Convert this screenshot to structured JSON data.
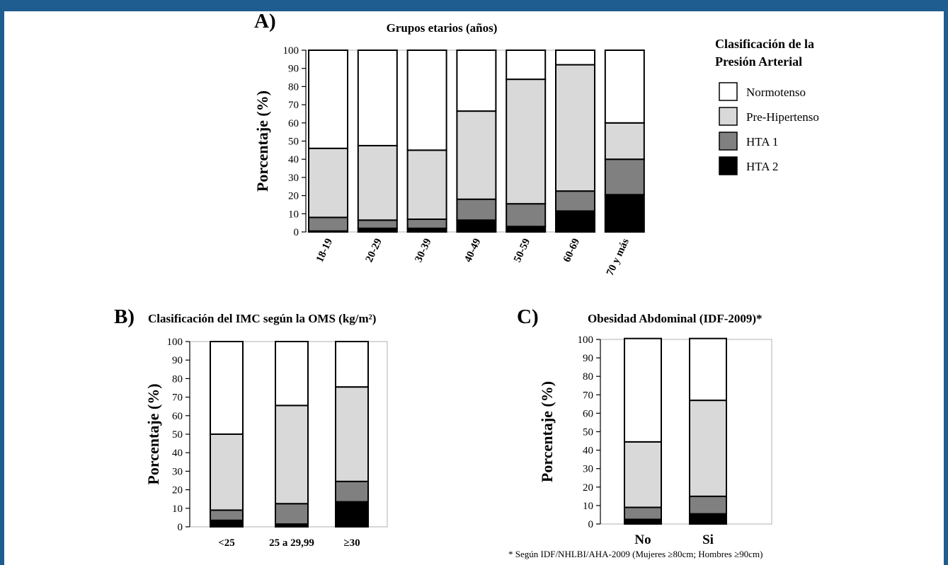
{
  "colors": {
    "normotenso": "#ffffff",
    "pre_hipertenso": "#d9d9d9",
    "hta1": "#808080",
    "hta2": "#000000",
    "page_border": "#1f5c8f"
  },
  "legend": {
    "title_line1": "Clasificación de la",
    "title_line2": "Presión Arterial",
    "items": [
      {
        "label": "Normotenso",
        "color": "#ffffff"
      },
      {
        "label": "Pre-Hipertenso",
        "color": "#d9d9d9"
      },
      {
        "label": "HTA 1",
        "color": "#808080"
      },
      {
        "label": "HTA 2",
        "color": "#000000"
      }
    ]
  },
  "footnote": "* Según IDF/NHLBI/AHA-2009 (Mujeres ≥80cm; Hombres ≥90cm)",
  "chart_data": [
    {
      "type": "bar",
      "stacked": true,
      "panel": "A)",
      "title": "Grupos etarios (años)",
      "ylabel": "Porcentaje (%)",
      "ylim": [
        0,
        100
      ],
      "yticks": [
        0,
        10,
        20,
        30,
        40,
        50,
        60,
        70,
        80,
        90,
        100
      ],
      "categories": [
        "18-19",
        "20-29",
        "30-39",
        "40-49",
        "50-59",
        "60-69",
        "70 y más"
      ],
      "series": [
        {
          "name": "HTA 2",
          "values": [
            0.5,
            2,
            2,
            6.5,
            3,
            11.5,
            20.5
          ]
        },
        {
          "name": "HTA 1",
          "values": [
            7.5,
            4.5,
            5,
            11.5,
            12.5,
            11,
            19.5
          ]
        },
        {
          "name": "Pre-Hipertenso",
          "values": [
            38,
            41,
            38,
            48.5,
            68.5,
            69.5,
            20
          ]
        },
        {
          "name": "Normotenso",
          "values": [
            54,
            52.5,
            55,
            33.5,
            16,
            8,
            40
          ]
        }
      ]
    },
    {
      "type": "bar",
      "stacked": true,
      "panel": "B)",
      "title": "Clasificación del IMC según la OMS (kg/m²)",
      "ylabel": "Porcentaje (%)",
      "ylim": [
        0,
        100
      ],
      "yticks": [
        0,
        10,
        20,
        30,
        40,
        50,
        60,
        70,
        80,
        90,
        100
      ],
      "categories": [
        "<25",
        "25 a 29,99",
        "≥30"
      ],
      "series": [
        {
          "name": "HTA 2",
          "values": [
            3.5,
            1.5,
            13.5
          ]
        },
        {
          "name": "HTA 1",
          "values": [
            5.5,
            11,
            11
          ]
        },
        {
          "name": "Pre-Hipertenso",
          "values": [
            41,
            53,
            51
          ]
        },
        {
          "name": "Normotenso",
          "values": [
            50,
            34.5,
            24.5
          ]
        }
      ]
    },
    {
      "type": "bar",
      "stacked": true,
      "panel": "C)",
      "title": "Obesidad Abdominal (IDF-2009)*",
      "ylabel": "Porcentaje (%)",
      "ylim": [
        0,
        100
      ],
      "yticks": [
        0,
        10,
        20,
        30,
        40,
        50,
        60,
        70,
        80,
        90,
        100
      ],
      "categories": [
        "No",
        "Si"
      ],
      "series": [
        {
          "name": "HTA 2",
          "values": [
            2.5,
            5.5
          ]
        },
        {
          "name": "HTA 1",
          "values": [
            6.5,
            9.5
          ]
        },
        {
          "name": "Pre-Hipertenso",
          "values": [
            35.5,
            52
          ]
        },
        {
          "name": "Normotenso",
          "values": [
            56,
            33.5
          ]
        }
      ]
    }
  ]
}
